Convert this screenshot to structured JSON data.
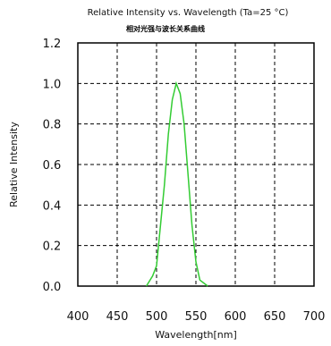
{
  "chart_data": {
    "type": "line",
    "title": "Relative Intensity vs. Wavelength (Ta=25 °C)",
    "subtitle": "相对光强与波长关系曲线",
    "xlabel": "Wavelength[nm]",
    "ylabel": "Relative Intensity",
    "xlim": [
      400,
      700
    ],
    "ylim": [
      0.0,
      1.2
    ],
    "xticks": [
      "400",
      "450",
      "500",
      "550",
      "600",
      "650",
      "700"
    ],
    "yticks": [
      "0.0",
      "0.2",
      "0.4",
      "0.6",
      "0.8",
      "1.0",
      "1.2"
    ],
    "grid": true,
    "grid_style": "dashed",
    "series": [
      {
        "color": "#33cc33",
        "points": [
          [
            487,
            0.0
          ],
          [
            495,
            0.05
          ],
          [
            500,
            0.1
          ],
          [
            505,
            0.3
          ],
          [
            510,
            0.5
          ],
          [
            515,
            0.75
          ],
          [
            520,
            0.92
          ],
          [
            525,
            1.0
          ],
          [
            530,
            0.95
          ],
          [
            535,
            0.8
          ],
          [
            540,
            0.55
          ],
          [
            545,
            0.3
          ],
          [
            550,
            0.12
          ],
          [
            555,
            0.03
          ],
          [
            565,
            0.0
          ]
        ]
      }
    ]
  }
}
